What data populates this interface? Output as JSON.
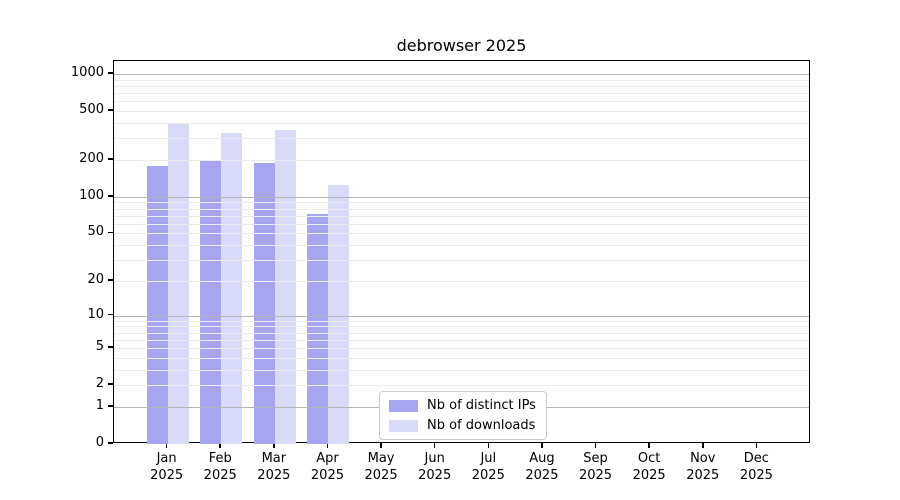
{
  "chart_data": {
    "type": "bar",
    "title": "debrowser 2025",
    "categories": [
      "Jan 2025",
      "Feb 2025",
      "Mar 2025",
      "Apr 2025",
      "May 2025",
      "Jun 2025",
      "Jul 2025",
      "Aug 2025",
      "Sep 2025",
      "Oct 2025",
      "Nov 2025",
      "Dec 2025"
    ],
    "series": [
      {
        "name": "Nb of distinct IPs",
        "color": "#a5a5f0",
        "values": [
          178,
          196,
          188,
          72,
          null,
          null,
          null,
          null,
          null,
          null,
          null,
          null
        ]
      },
      {
        "name": "Nb of downloads",
        "color": "#d9d9f8",
        "values": [
          400,
          330,
          352,
          126,
          null,
          null,
          null,
          null,
          null,
          null,
          null,
          null
        ]
      }
    ],
    "yscale": "log1p",
    "y_ticks": [
      1000,
      500,
      200,
      100,
      50,
      20,
      10,
      5,
      2,
      1,
      0
    ],
    "ylim": [
      0,
      1280
    ],
    "grid": true,
    "legend_position": "inside-bottom-center"
  },
  "colors": {
    "background": "#ffffff",
    "spine": "#000000",
    "grid_major": "#b4b4b4",
    "grid_minor": "#ebebeb",
    "legend_border": "#cccccc",
    "text": "#000000"
  }
}
